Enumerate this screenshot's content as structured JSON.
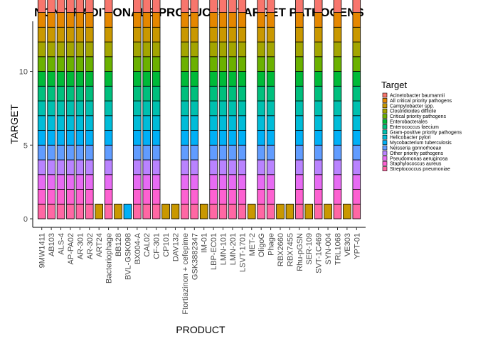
{
  "chart_data": {
    "type": "bar",
    "stacked": true,
    "title": "NON-TRADITIONALS PRODUCTS - TARGET PATHOGENS",
    "xlabel": "PRODUCT",
    "ylabel": "TARGET",
    "ylim": [
      0,
      13.4
    ],
    "yticks": [
      0,
      5,
      10
    ],
    "grid": false,
    "legend_position": "right",
    "legend_title": "Target",
    "categories": [
      "9MW1411",
      "AB103",
      "ALS-4",
      "AP-PA02",
      "AR-301",
      "AR-302",
      "ART24",
      "Bacteriophage",
      "BB128",
      "BVL-GSK098",
      "BX004-A",
      "CAL02",
      "CF-301",
      "CP101",
      "DAV132",
      "Ftortiazinon + cefepime",
      "GSK3882347",
      "IM-01",
      "LBP-EC01",
      "LMN-101",
      "LMN-201",
      "LSVT-1701",
      "MET-2",
      "OligoG",
      "Phage",
      "RBX2660",
      "RBX7455",
      "Rhu-pGSN",
      "SER-109",
      "SVT-1C469",
      "SYN-004",
      "TRL1068",
      "VE303",
      "YPT-01"
    ],
    "series": [
      {
        "name": "Acinetobacter baumannii",
        "color": "#F8766D",
        "values": [
          1,
          1,
          1,
          1,
          1,
          1,
          0,
          1,
          0,
          0,
          1,
          1,
          1,
          0,
          0,
          1,
          1,
          0,
          1,
          1,
          1,
          1,
          0,
          1,
          1,
          0,
          0,
          1,
          0,
          1,
          0,
          1,
          0,
          1
        ]
      },
      {
        "name": "All critical priority pathogens",
        "color": "#E58700",
        "values": [
          1,
          1,
          1,
          1,
          1,
          1,
          0,
          1,
          0,
          0,
          1,
          1,
          1,
          0,
          0,
          1,
          1,
          0,
          1,
          1,
          1,
          1,
          0,
          1,
          1,
          0,
          0,
          1,
          0,
          1,
          0,
          1,
          0,
          1
        ]
      },
      {
        "name": "Campylobacter spp.",
        "color": "#C99800",
        "values": [
          1,
          1,
          1,
          1,
          1,
          1,
          1,
          1,
          1,
          0,
          1,
          1,
          1,
          1,
          1,
          1,
          1,
          1,
          1,
          1,
          1,
          1,
          1,
          1,
          1,
          1,
          1,
          1,
          1,
          1,
          1,
          1,
          1,
          1
        ]
      },
      {
        "name": "Clostridioides difficile",
        "color": "#A3A500",
        "values": [
          1,
          1,
          1,
          1,
          1,
          1,
          0,
          1,
          0,
          0,
          1,
          1,
          1,
          0,
          0,
          1,
          1,
          0,
          1,
          1,
          1,
          1,
          0,
          1,
          1,
          0,
          0,
          1,
          0,
          1,
          0,
          1,
          0,
          1
        ]
      },
      {
        "name": "Critical priority pathogens",
        "color": "#6BB100",
        "values": [
          1,
          1,
          1,
          1,
          1,
          1,
          0,
          1,
          0,
          0,
          1,
          1,
          1,
          0,
          0,
          1,
          1,
          0,
          1,
          1,
          1,
          1,
          0,
          1,
          1,
          0,
          0,
          1,
          0,
          1,
          0,
          1,
          0,
          1
        ]
      },
      {
        "name": "Enterobacterales",
        "color": "#00BA38",
        "values": [
          1,
          1,
          1,
          1,
          1,
          1,
          0,
          1,
          0,
          0,
          1,
          1,
          1,
          0,
          0,
          1,
          1,
          0,
          1,
          1,
          1,
          1,
          0,
          1,
          1,
          0,
          0,
          1,
          0,
          1,
          0,
          1,
          0,
          1
        ]
      },
      {
        "name": "Enterococcus faecium",
        "color": "#00BF7D",
        "values": [
          1,
          1,
          1,
          1,
          1,
          1,
          0,
          1,
          0,
          0,
          1,
          1,
          1,
          0,
          0,
          1,
          1,
          0,
          1,
          1,
          1,
          1,
          0,
          1,
          1,
          0,
          0,
          1,
          0,
          1,
          0,
          1,
          0,
          1
        ]
      },
      {
        "name": "Gram-positive priority pathogens",
        "color": "#00C0AF",
        "values": [
          1,
          1,
          1,
          1,
          1,
          1,
          0,
          1,
          0,
          0,
          1,
          1,
          1,
          0,
          0,
          1,
          1,
          0,
          1,
          1,
          1,
          1,
          0,
          1,
          1,
          0,
          0,
          1,
          0,
          1,
          0,
          1,
          0,
          1
        ]
      },
      {
        "name": "Helicobacter pylori",
        "color": "#00BCD8",
        "values": [
          1,
          1,
          1,
          1,
          1,
          1,
          0,
          1,
          0,
          0,
          1,
          1,
          1,
          0,
          0,
          1,
          1,
          0,
          1,
          1,
          1,
          1,
          0,
          1,
          1,
          0,
          0,
          1,
          0,
          1,
          0,
          1,
          0,
          1
        ]
      },
      {
        "name": "Mycobacterium tuberculosis",
        "color": "#00B0F6",
        "values": [
          1,
          1,
          1,
          1,
          1,
          1,
          0,
          1,
          0,
          1,
          1,
          1,
          1,
          0,
          0,
          1,
          1,
          0,
          1,
          1,
          1,
          1,
          0,
          1,
          1,
          0,
          0,
          1,
          0,
          1,
          0,
          1,
          0,
          1
        ]
      },
      {
        "name": "Neisseria gonnorhoeae",
        "color": "#619CFF",
        "values": [
          1,
          1,
          1,
          1,
          1,
          1,
          0,
          1,
          0,
          0,
          1,
          1,
          1,
          0,
          0,
          1,
          1,
          0,
          1,
          1,
          1,
          1,
          0,
          1,
          1,
          0,
          0,
          1,
          0,
          1,
          0,
          1,
          0,
          1
        ]
      },
      {
        "name": "Other priority pathogens",
        "color": "#B983FF",
        "values": [
          1,
          1,
          1,
          1,
          1,
          1,
          0,
          1,
          0,
          0,
          1,
          1,
          1,
          0,
          0,
          1,
          1,
          0,
          1,
          1,
          1,
          1,
          0,
          1,
          1,
          0,
          0,
          1,
          0,
          1,
          0,
          1,
          0,
          1
        ]
      },
      {
        "name": "Pseudomonas aeruginosa",
        "color": "#E76BF3",
        "values": [
          1,
          1,
          1,
          1,
          1,
          1,
          0,
          1,
          0,
          0,
          1,
          1,
          1,
          0,
          0,
          1,
          1,
          0,
          1,
          1,
          1,
          1,
          0,
          1,
          1,
          0,
          0,
          1,
          0,
          1,
          0,
          1,
          0,
          1
        ]
      },
      {
        "name": "Staphylococcus aureus",
        "color": "#FD61D1",
        "values": [
          1,
          1,
          1,
          1,
          1,
          1,
          0,
          1,
          0,
          0,
          1,
          1,
          1,
          0,
          0,
          1,
          1,
          0,
          1,
          1,
          1,
          1,
          0,
          1,
          1,
          0,
          0,
          1,
          0,
          1,
          0,
          1,
          0,
          1
        ]
      },
      {
        "name": "Streptococcus pneumoniae",
        "color": "#FF67A4",
        "values": [
          1,
          1,
          1,
          1,
          1,
          1,
          0,
          1,
          0,
          0,
          1,
          1,
          1,
          0,
          0,
          1,
          1,
          0,
          1,
          1,
          1,
          1,
          0,
          1,
          1,
          0,
          0,
          1,
          0,
          1,
          0,
          1,
          0,
          1
        ]
      }
    ]
  }
}
